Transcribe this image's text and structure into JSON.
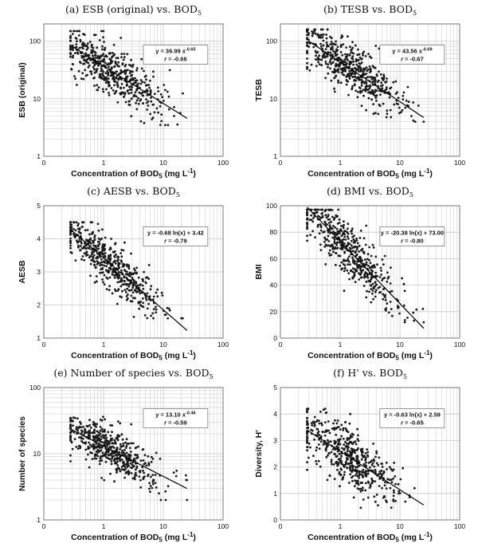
{
  "chart_data": [
    {
      "type": "scatter",
      "title": "(a) ESB (original) vs. BOD",
      "title_sub": "5",
      "xlabel": "Concentration of BOD",
      "xlabel_sub": "5",
      "xlabel_unit": " (mg L",
      "xlabel_sup": "-1",
      "xlabel_end": ")",
      "ylabel": "ESB (original)",
      "xscale": "log",
      "yscale": "log",
      "xlim": [
        0.1,
        100
      ],
      "ylim": [
        1,
        200
      ],
      "xticks": [
        "0",
        "1",
        "10",
        "100"
      ],
      "yticks": [
        {
          "v": 1,
          "label": "1"
        },
        {
          "v": 10,
          "label": "10"
        },
        {
          "v": 100,
          "label": "100"
        }
      ],
      "grid": true,
      "fit": {
        "type": "power",
        "a": 36.99,
        "b": -0.65,
        "x_range": [
          0.3,
          25
        ]
      },
      "equation": "y = 36.99 x",
      "equation_sup": "-0.65",
      "r_text": "r",
      "r_value": "= -0.66",
      "scatter": {
        "n": 520,
        "x_center": 1.35,
        "x_spread": 0.95,
        "x_range": [
          0.28,
          25
        ],
        "noise": 0.5,
        "y_clip": [
          3.5,
          150
        ],
        "seed": 11
      }
    },
    {
      "type": "scatter",
      "title": "(b) TESB vs. BOD",
      "title_sub": "5",
      "xlabel": "Concentration of BOD",
      "xlabel_sub": "5",
      "xlabel_unit": " (mg L",
      "xlabel_sup": "-1",
      "xlabel_end": ")",
      "ylabel": "TESB",
      "xscale": "log",
      "yscale": "log",
      "xlim": [
        0.1,
        100
      ],
      "ylim": [
        1,
        200
      ],
      "xticks": [
        "0",
        "1",
        "10",
        "100"
      ],
      "yticks": [
        {
          "v": 1,
          "label": "1"
        },
        {
          "v": 10,
          "label": "10"
        },
        {
          "v": 100,
          "label": "100"
        }
      ],
      "grid": true,
      "fit": {
        "type": "power",
        "a": 43.56,
        "b": -0.69,
        "x_range": [
          0.3,
          25
        ]
      },
      "equation": "y = 43.56 x",
      "equation_sup": "-0.69",
      "r_text": "r",
      "r_value": "= -0.67",
      "scatter": {
        "n": 520,
        "x_center": 1.35,
        "x_spread": 0.95,
        "x_range": [
          0.28,
          25
        ],
        "noise": 0.48,
        "y_clip": [
          4,
          160
        ],
        "seed": 23
      }
    },
    {
      "type": "scatter",
      "title": "(c) AESB vs. BOD",
      "title_sub": "5",
      "xlabel": "Concentration of BOD",
      "xlabel_sub": "5",
      "xlabel_unit": " (mg L",
      "xlabel_sup": "-1",
      "xlabel_end": ")",
      "ylabel": "AESB",
      "xscale": "log",
      "yscale": "linear",
      "xlim": [
        0.1,
        100
      ],
      "ylim": [
        1,
        5
      ],
      "xticks": [
        "0",
        "1",
        "10",
        "100"
      ],
      "yticks": [
        {
          "v": 1,
          "label": "1"
        },
        {
          "v": 2,
          "label": "2"
        },
        {
          "v": 3,
          "label": "3"
        },
        {
          "v": 4,
          "label": "4"
        },
        {
          "v": 5,
          "label": "5"
        }
      ],
      "grid": true,
      "fit": {
        "type": "ln",
        "a": -0.68,
        "b": 3.42,
        "x_range": [
          0.28,
          25
        ]
      },
      "equation": "y = -0.68 ln(x) + 3.42",
      "equation_sup": "",
      "r_text": "r",
      "r_value": "= -0.79",
      "scatter": {
        "n": 520,
        "x_center": 1.35,
        "x_spread": 0.95,
        "x_range": [
          0.28,
          25
        ],
        "noise": 0.35,
        "y_clip": [
          1.6,
          4.5
        ],
        "seed": 37
      }
    },
    {
      "type": "scatter",
      "title": "(d) BMI vs. BOD",
      "title_sub": "5",
      "xlabel": "Concentration of BOD",
      "xlabel_sub": "5",
      "xlabel_unit": " (mg L",
      "xlabel_sup": "-1",
      "xlabel_end": ")",
      "ylabel": "BMI",
      "xscale": "log",
      "yscale": "linear",
      "xlim": [
        0.1,
        100
      ],
      "ylim": [
        0,
        100
      ],
      "xticks": [
        "0",
        "1",
        "10",
        "100"
      ],
      "yticks": [
        {
          "v": 0,
          "label": "0"
        },
        {
          "v": 20,
          "label": "20"
        },
        {
          "v": 40,
          "label": "40"
        },
        {
          "v": 60,
          "label": "60"
        },
        {
          "v": 80,
          "label": "80"
        },
        {
          "v": 100,
          "label": "100"
        }
      ],
      "grid": true,
      "fit": {
        "type": "ln",
        "a": -20.38,
        "b": 73.0,
        "x_range": [
          0.28,
          25
        ]
      },
      "equation": "y = -20.38 ln(x) + 73.00",
      "equation_sup": "",
      "r_text": "r",
      "r_value": "= -0.80",
      "scatter": {
        "n": 520,
        "x_center": 1.35,
        "x_spread": 0.95,
        "x_range": [
          0.28,
          25
        ],
        "noise": 10,
        "y_clip": [
          12,
          97
        ],
        "seed": 53
      }
    },
    {
      "type": "scatter",
      "title": "(e) Number of species vs. BOD",
      "title_sub": "5",
      "xlabel": "Concentration of BOD",
      "xlabel_sub": "5",
      "xlabel_unit": " (mg L",
      "xlabel_sup": "-1",
      "xlabel_end": ")",
      "ylabel": "Number of species",
      "xscale": "log",
      "yscale": "log",
      "xlim": [
        0.1,
        100
      ],
      "ylim": [
        1,
        100
      ],
      "xticks": [
        "0",
        "1",
        "10",
        "100"
      ],
      "yticks": [
        {
          "v": 1,
          "label": "1"
        },
        {
          "v": 10,
          "label": "10"
        },
        {
          "v": 100,
          "label": "100"
        }
      ],
      "grid": true,
      "fit": {
        "type": "power",
        "a": 13.1,
        "b": -0.46,
        "x_range": [
          0.28,
          25
        ]
      },
      "equation": "y = 13.10 x",
      "equation_sup": "-0.46",
      "r_text": "r",
      "r_value": "= -0.59",
      "scatter": {
        "n": 520,
        "x_center": 1.35,
        "x_spread": 0.95,
        "x_range": [
          0.28,
          25
        ],
        "noise": 0.38,
        "y_clip": [
          2,
          36
        ],
        "seed": 71
      }
    },
    {
      "type": "scatter",
      "title": "(f) H' vs. BOD",
      "title_sub": "5",
      "xlabel": "Concentration of BOD",
      "xlabel_sub": "5",
      "xlabel_unit": " (mg L",
      "xlabel_sup": "-1",
      "xlabel_end": ")",
      "ylabel": "Diversity, H'",
      "xscale": "log",
      "yscale": "linear",
      "xlim": [
        0.1,
        100
      ],
      "ylim": [
        0,
        5
      ],
      "xticks": [
        "0",
        "1",
        "10",
        "100"
      ],
      "yticks": [
        {
          "v": 0,
          "label": "0"
        },
        {
          "v": 1,
          "label": "1"
        },
        {
          "v": 2,
          "label": "2"
        },
        {
          "v": 3,
          "label": "3"
        },
        {
          "v": 4,
          "label": "4"
        },
        {
          "v": 5,
          "label": "5"
        }
      ],
      "grid": true,
      "fit": {
        "type": "ln",
        "a": -0.63,
        "b": 2.59,
        "x_range": [
          0.28,
          25
        ]
      },
      "equation": "y = -0.63 ln(x) + 2.59",
      "equation_sup": "",
      "r_text": "r",
      "r_value": "= -0.65",
      "scatter": {
        "n": 520,
        "x_center": 1.35,
        "x_spread": 0.95,
        "x_range": [
          0.28,
          25
        ],
        "noise": 0.52,
        "y_clip": [
          0.4,
          4.2
        ],
        "seed": 89
      }
    }
  ],
  "colors": {
    "points": "#1a1a1a",
    "fit_line": "#000000",
    "grid": "#c8c8c8",
    "axis": "#6b6b6b"
  }
}
